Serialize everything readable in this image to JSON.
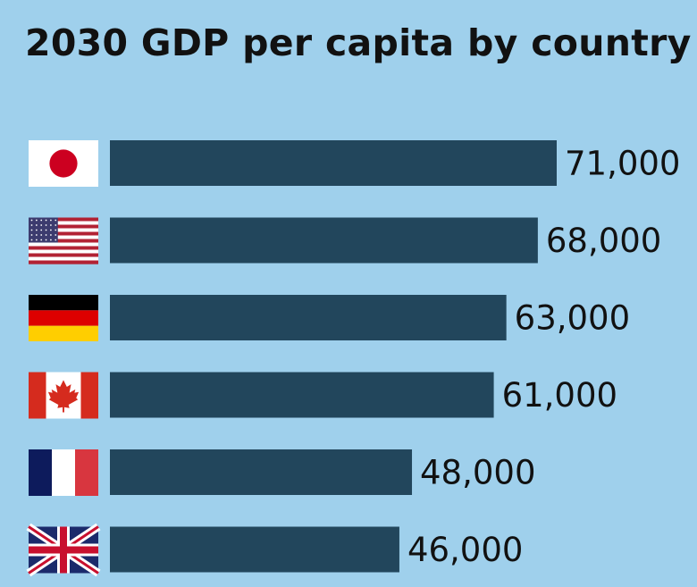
{
  "title": "2030 GDP per capita by country",
  "chart_data": {
    "type": "bar",
    "orientation": "horizontal",
    "title": "2030 GDP per capita by country",
    "categories": [
      "Japan",
      "United States",
      "Germany",
      "Canada",
      "France",
      "United Kingdom"
    ],
    "flag_icons": [
      "japan-flag-icon",
      "usa-flag-icon",
      "germany-flag-icon",
      "canada-flag-icon",
      "france-flag-icon",
      "uk-flag-icon"
    ],
    "values": [
      71000,
      68000,
      63000,
      61000,
      48000,
      46000
    ],
    "value_labels": [
      "71,000",
      "68,000",
      "63,000",
      "61,000",
      "48,000",
      "46,000"
    ],
    "xlim": [
      0,
      71000
    ],
    "grid": false,
    "legend": "none",
    "colors": {
      "bar": "#22465c",
      "background": "#9fd0ec",
      "text": "#111111"
    }
  }
}
